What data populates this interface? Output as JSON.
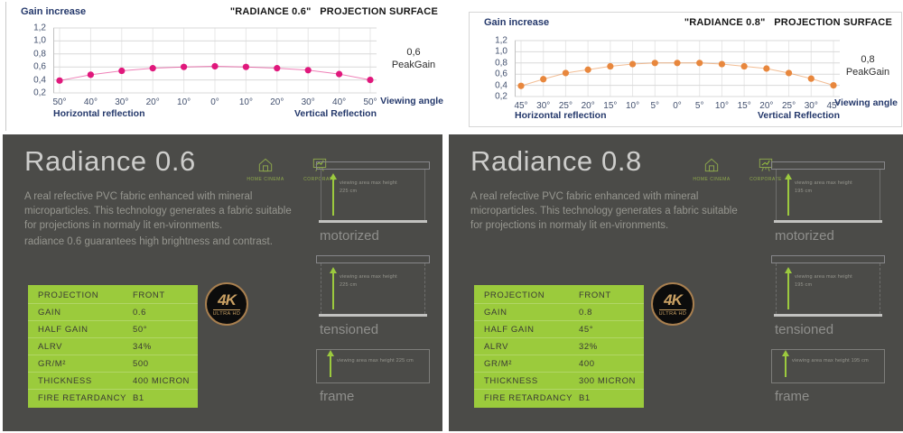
{
  "chart_data": [
    {
      "type": "line",
      "title": "\"RADIANCE 0.6\"   PROJECTION SURFACE",
      "ylabel": "Gain increase",
      "xlabel": "Viewing angle",
      "x_section_labels": {
        "left": "Horizontal reflection",
        "right": "Vertical Reflection"
      },
      "x_ticks": [
        "50°",
        "40°",
        "30°",
        "20°",
        "10°",
        "0°",
        "10°",
        "20°",
        "30°",
        "40°",
        "50°"
      ],
      "values": [
        0.39,
        0.48,
        0.54,
        0.58,
        0.6,
        0.61,
        0.6,
        0.58,
        0.55,
        0.49,
        0.4
      ],
      "y_ticks": [
        "1,2",
        "1,0",
        "0,8",
        "0,6",
        "0,4",
        "0,2"
      ],
      "ylim": [
        0.2,
        1.2
      ],
      "grid": true,
      "legend": "none",
      "line_color": "#e0187c",
      "annotation": {
        "value": "0,6",
        "label": "PeakGain"
      }
    },
    {
      "type": "line",
      "title": "\"RADIANCE 0.8\"   PROJECTION SURFACE",
      "ylabel": "Gain increase",
      "xlabel": "Viewing angle",
      "x_section_labels": {
        "left": "Horizontal reflection",
        "right": "Vertical Reflection"
      },
      "x_ticks": [
        "45°",
        "30°",
        "25°",
        "20°",
        "15°",
        "10°",
        "5°",
        "0°",
        "5°",
        "10°",
        "15°",
        "20°",
        "25°",
        "30°",
        "45°"
      ],
      "values": [
        0.39,
        0.51,
        0.62,
        0.68,
        0.74,
        0.78,
        0.8,
        0.8,
        0.8,
        0.78,
        0.74,
        0.7,
        0.62,
        0.52,
        0.4
      ],
      "y_ticks": [
        "1,2",
        "1,0",
        "0,8",
        "0,6",
        "0,4",
        "0,2"
      ],
      "ylim": [
        0.2,
        1.2
      ],
      "grid": true,
      "legend": "none",
      "line_color": "#e8873d",
      "annotation": {
        "value": "0,8",
        "label": "PeakGain"
      }
    }
  ],
  "products": [
    {
      "panel": {
        "title": "Radiance 0.6",
        "badges": [
          {
            "label": "HOME CINEMA"
          },
          {
            "label": "CORPORATE"
          }
        ],
        "paragraphs": [
          "A real refective PVC fabric enhanced with mineral microparticles. This technology generates a fabric suitable for projections in normaly lit en-vironments.",
          "radiance 0.6 guarantees high brightness and contrast."
        ],
        "table": {
          "rows": [
            [
              "PROJECTION",
              "FRONT"
            ],
            [
              "GAIN",
              "0.6"
            ],
            [
              "HALF GAIN",
              "50°"
            ],
            [
              "ALRV",
              "34%"
            ],
            [
              "GR/M²",
              "500"
            ],
            [
              "THICKNESS",
              "400 MICRON"
            ],
            [
              "FIRE RETARDANCY",
              "B1"
            ]
          ]
        },
        "badge_4k": {
          "top": "4K",
          "bottom": "ULTRA HD"
        },
        "diagrams": [
          {
            "label": "motorized",
            "note": "viewing area max height 225 cm"
          },
          {
            "label": "tensioned",
            "note": "viewing area max height 225 cm"
          },
          {
            "label": "frame",
            "note": "viewing area max height 225 cm"
          }
        ]
      }
    },
    {
      "panel": {
        "title": "Radiance 0.8",
        "badges": [
          {
            "label": "HOME CINEMA"
          },
          {
            "label": "CORPORATE"
          }
        ],
        "paragraphs": [
          "A real refective PVC fabric enhanced with mineral microparticles. This technology generates a fabric suitable for projections in normaly lit en-vironments."
        ],
        "table": {
          "rows": [
            [
              "PROJECTION",
              "FRONT"
            ],
            [
              "GAIN",
              "0.8"
            ],
            [
              "HALF GAIN",
              "45°"
            ],
            [
              "ALRV",
              "32%"
            ],
            [
              "GR/M²",
              "400"
            ],
            [
              "THICKNESS",
              "300 MICRON"
            ],
            [
              "FIRE RETARDANCY",
              "B1"
            ]
          ]
        },
        "badge_4k": {
          "top": "4K",
          "bottom": "ULTRA HD"
        },
        "diagrams": [
          {
            "label": "motorized",
            "note": "viewing area max height 195 cm"
          },
          {
            "label": "tensioned",
            "note": "viewing area max height 195 cm"
          },
          {
            "label": "frame",
            "note": "viewing area max height 195 cm"
          }
        ]
      }
    }
  ],
  "colors": {
    "accent_green": "#9bcb3c",
    "pink": "#e0187c",
    "orange": "#e8873d",
    "panel_bg": "#4b4b48",
    "label_navy": "#24386b",
    "badge_bronze": "#c9a063"
  }
}
